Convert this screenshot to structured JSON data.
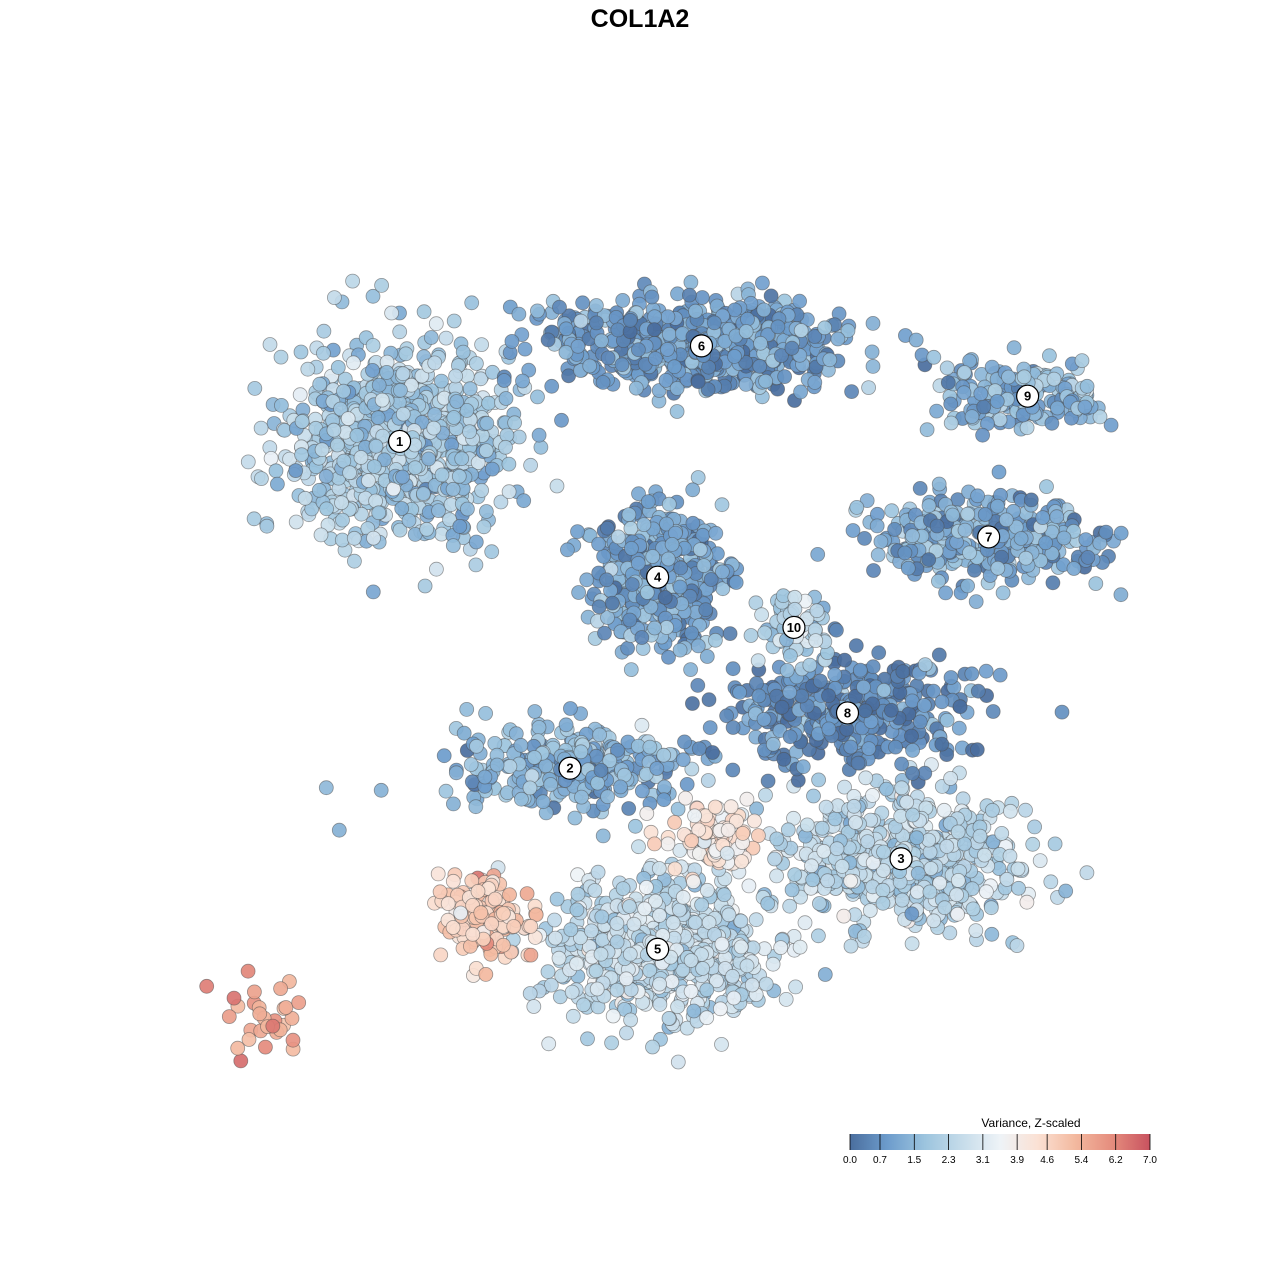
{
  "title": "COL1A2",
  "chart_data": {
    "type": "scatter",
    "title": "COL1A2",
    "xlabel": "",
    "ylabel": "",
    "grid": false,
    "axes_visible": false,
    "legend_placement": "bottom-right",
    "colorbar": {
      "title": "Variance, Z-scaled",
      "min": 0.0,
      "max": 7.0,
      "ticks": [
        "0.0",
        "0.7",
        "1.5",
        "2.3",
        "3.1",
        "3.9",
        "4.6",
        "5.4",
        "6.2",
        "7.0"
      ],
      "colors": [
        "#4a6e9e",
        "#6d9ccc",
        "#9cc4de",
        "#c6dcea",
        "#eef3f7",
        "#fbe1d4",
        "#f3b99f",
        "#e58c7d",
        "#c8525f"
      ]
    },
    "x_range": [
      -50,
      45
    ],
    "y_range": [
      -45,
      45
    ],
    "clusters": [
      {
        "id": "1",
        "x": -29.5,
        "y": 19.5,
        "spread": [
          10,
          9
        ],
        "value": 2.0,
        "count": 900
      },
      {
        "id": "2",
        "x": -12,
        "y": -13,
        "spread": [
          11,
          4
        ],
        "value": 1.4,
        "count": 330
      },
      {
        "id": "3",
        "x": 22,
        "y": -22,
        "spread": [
          11,
          6
        ],
        "value": 2.4,
        "count": 650
      },
      {
        "id": "4",
        "x": -3,
        "y": 6,
        "spread": [
          6,
          6
        ],
        "value": 1.1,
        "count": 500
      },
      {
        "id": "5",
        "x": -3,
        "y": -31,
        "spread": [
          10,
          6
        ],
        "value": 2.6,
        "count": 700
      },
      {
        "id": "6",
        "x": 1.5,
        "y": 29,
        "spread": [
          14,
          4
        ],
        "value": 0.9,
        "count": 700
      },
      {
        "id": "7",
        "x": 31,
        "y": 10,
        "spread": [
          12,
          4
        ],
        "value": 1.1,
        "count": 380
      },
      {
        "id": "8",
        "x": 16.5,
        "y": -7.5,
        "spread": [
          11,
          5
        ],
        "value": 0.5,
        "count": 400
      },
      {
        "id": "9",
        "x": 35,
        "y": 24,
        "spread": [
          8,
          3
        ],
        "value": 1.4,
        "count": 190
      },
      {
        "id": "10",
        "x": 11,
        "y": 1,
        "spread": [
          3,
          3
        ],
        "value": 2.2,
        "count": 80
      }
    ],
    "hotspots": [
      {
        "x": -43,
        "y": -38,
        "value": 5.6,
        "count": 30
      },
      {
        "x": -21,
        "y": -28,
        "value": 4.8,
        "count": 150
      },
      {
        "x": 3,
        "y": -20,
        "value": 4.0,
        "count": 90
      }
    ]
  }
}
